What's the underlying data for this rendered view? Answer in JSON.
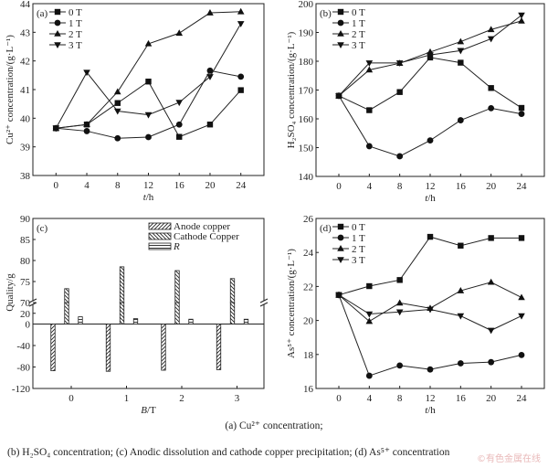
{
  "chart_data": [
    {
      "id": "a",
      "type": "line",
      "panel_label": "(a)",
      "xlabel_italic": "t",
      "xlabel_rest": "/h",
      "ylabel": "Cu²⁺ concentration/(g·L⁻¹)",
      "x": [
        0,
        4,
        8,
        12,
        16,
        20,
        24
      ],
      "xticks": [
        0,
        4,
        8,
        12,
        16,
        20,
        24
      ],
      "xlim": [
        -3,
        27
      ],
      "ylim": [
        38,
        44
      ],
      "yticks": [
        38,
        39,
        40,
        41,
        42,
        43,
        44
      ],
      "legend_position": "top-left",
      "series": [
        {
          "name": "0 T",
          "marker": "square",
          "values": [
            39.65,
            39.78,
            40.53,
            41.28,
            39.35,
            39.78,
            40.98
          ]
        },
        {
          "name": "1 T",
          "marker": "circle",
          "values": [
            39.65,
            39.55,
            39.3,
            39.34,
            39.78,
            41.66,
            41.45
          ]
        },
        {
          "name": "2 T",
          "marker": "triangle-up",
          "values": [
            39.65,
            39.78,
            40.92,
            42.6,
            42.97,
            43.68,
            43.72
          ]
        },
        {
          "name": "3 T",
          "marker": "triangle-down",
          "values": [
            39.65,
            41.6,
            40.25,
            40.12,
            40.55,
            41.45,
            43.3
          ]
        }
      ]
    },
    {
      "id": "b",
      "type": "line",
      "panel_label": "(b)",
      "xlabel_italic": "t",
      "xlabel_rest": "/h",
      "ylabel": "H₂SO₄ concentration/(g·L⁻¹)",
      "x": [
        0,
        4,
        8,
        12,
        16,
        20,
        24
      ],
      "xticks": [
        0,
        4,
        8,
        12,
        16,
        20,
        24
      ],
      "xlim": [
        -3,
        27
      ],
      "ylim": [
        140,
        200
      ],
      "yticks": [
        140,
        150,
        160,
        170,
        180,
        190,
        200
      ],
      "legend_position": "top-left",
      "series": [
        {
          "name": "0 T",
          "marker": "square",
          "values": [
            168,
            163,
            169.3,
            181.3,
            179.5,
            170.7,
            163.8
          ]
        },
        {
          "name": "1 T",
          "marker": "circle",
          "values": [
            168,
            150.5,
            147,
            152.5,
            159.5,
            163.7,
            161.7
          ]
        },
        {
          "name": "2 T",
          "marker": "triangle-up",
          "values": [
            168,
            177,
            179.3,
            183.2,
            186.8,
            191,
            194
          ]
        },
        {
          "name": "3 T",
          "marker": "triangle-down",
          "values": [
            168,
            179.4,
            179.4,
            182.2,
            183.7,
            187.8,
            196
          ]
        }
      ]
    },
    {
      "id": "c",
      "type": "bar",
      "panel_label": "(c)",
      "xlabel_italic": "B",
      "xlabel_rest": "/T",
      "ylabel": "Quality/g",
      "categories": [
        "0",
        "1",
        "2",
        "3"
      ],
      "broken_axis": {
        "lower": [
          -120,
          40
        ],
        "upper": [
          70,
          90
        ],
        "break_at": 40
      },
      "yticks_lower": [
        -120,
        -80,
        -40,
        0,
        20
      ],
      "yticks_upper": [
        70,
        75,
        80,
        85,
        90
      ],
      "legend_position": "top-right",
      "series": [
        {
          "name": "Anode copper",
          "pattern": "diag-right",
          "values": [
            -87,
            -88,
            -86,
            -85
          ]
        },
        {
          "name": "Cathode Copper",
          "pattern": "diag-left",
          "values": [
            73.3,
            78.5,
            77.6,
            75.7
          ]
        },
        {
          "name": "R",
          "pattern": "horizontal",
          "italic": true,
          "values": [
            13.5,
            10,
            9,
            9
          ]
        }
      ]
    },
    {
      "id": "d",
      "type": "line",
      "panel_label": "(d)",
      "xlabel_italic": "t",
      "xlabel_rest": "/h",
      "ylabel": "As⁵⁺ concentration/(g·L⁻¹)",
      "x": [
        0,
        4,
        8,
        12,
        16,
        20,
        24
      ],
      "xticks": [
        0,
        4,
        8,
        12,
        16,
        20,
        24
      ],
      "xlim": [
        -3,
        27
      ],
      "ylim": [
        16,
        26
      ],
      "yticks": [
        16,
        18,
        20,
        22,
        24,
        26
      ],
      "legend_position": "top-left",
      "series": [
        {
          "name": "0 T",
          "marker": "square",
          "values": [
            21.5,
            22.02,
            22.38,
            24.92,
            24.4,
            24.85,
            24.85
          ]
        },
        {
          "name": "1 T",
          "marker": "circle",
          "values": [
            21.5,
            16.75,
            17.35,
            17.12,
            17.48,
            17.55,
            17.97
          ]
        },
        {
          "name": "2 T",
          "marker": "triangle-up",
          "values": [
            21.5,
            19.95,
            21.03,
            20.72,
            21.75,
            22.25,
            21.35
          ]
        },
        {
          "name": "3 T",
          "marker": "triangle-down",
          "values": [
            21.5,
            20.38,
            20.5,
            20.65,
            20.27,
            19.42,
            20.27
          ]
        }
      ]
    }
  ],
  "captions": {
    "line1": "(a)  Cu²⁺  concentration;",
    "line2": "(b) H₂SO₄ concentration; (c) Anodic dissolution and cathode copper precipitation; (d) As⁵⁺ concentration"
  },
  "watermark": "©有色金属在线"
}
